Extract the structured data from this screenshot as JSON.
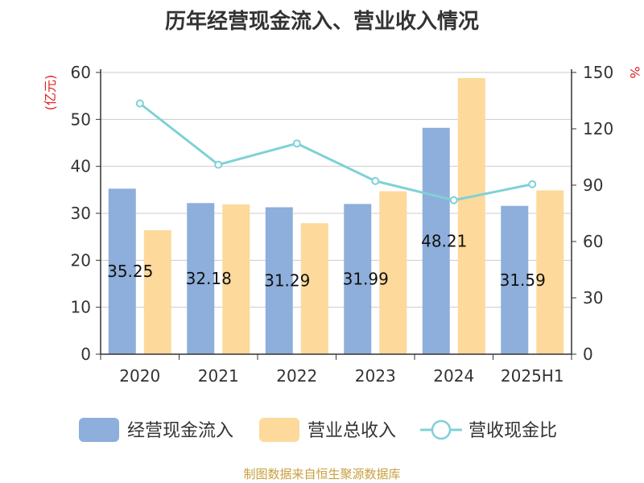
{
  "chart_data": {
    "type": "bar",
    "title": "历年经营现金流入、营业收入情况",
    "categories": [
      "2020",
      "2021",
      "2022",
      "2023",
      "2024",
      "2025H1"
    ],
    "series": [
      {
        "name": "经营现金流入",
        "type": "bar",
        "axis": "left",
        "color": "#8eaedb",
        "values": [
          35.25,
          32.18,
          31.29,
          31.99,
          48.21,
          31.59
        ],
        "labels": [
          "35.25",
          "32.18",
          "31.29",
          "31.99",
          "48.21",
          "31.59"
        ]
      },
      {
        "name": "营业总收入",
        "type": "bar",
        "axis": "left",
        "color": "#fdd99b",
        "values": [
          26.4,
          31.9,
          27.9,
          34.7,
          58.8,
          34.9
        ]
      },
      {
        "name": "营收现金比",
        "type": "line",
        "axis": "right",
        "color": "#7fd1d6",
        "values": [
          133.5,
          100.9,
          112.2,
          92.2,
          82.0,
          90.5
        ]
      }
    ],
    "y_left": {
      "label": "(亿元)",
      "min": 0,
      "max": 60,
      "ticks": [
        0,
        10,
        20,
        30,
        40,
        50,
        60
      ],
      "color": "#e02020"
    },
    "y_right": {
      "label": "%",
      "min": 0,
      "max": 150,
      "ticks": [
        0,
        30,
        60,
        90,
        120,
        150
      ],
      "color": "#e02020"
    },
    "grid": true,
    "legend_position": "bottom"
  },
  "source_note": "制图数据来自恒生聚源数据库"
}
